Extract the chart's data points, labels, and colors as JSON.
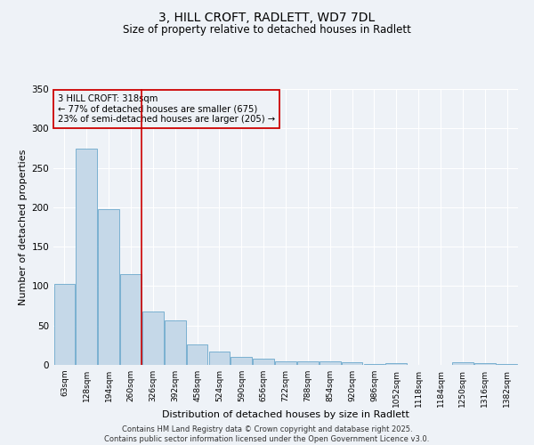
{
  "title_line1": "3, HILL CROFT, RADLETT, WD7 7DL",
  "title_line2": "Size of property relative to detached houses in Radlett",
  "xlabel": "Distribution of detached houses by size in Radlett",
  "ylabel": "Number of detached properties",
  "categories": [
    "63sqm",
    "128sqm",
    "194sqm",
    "260sqm",
    "326sqm",
    "392sqm",
    "458sqm",
    "524sqm",
    "590sqm",
    "656sqm",
    "722sqm",
    "788sqm",
    "854sqm",
    "920sqm",
    "986sqm",
    "1052sqm",
    "1118sqm",
    "1184sqm",
    "1250sqm",
    "1316sqm",
    "1382sqm"
  ],
  "values": [
    103,
    274,
    198,
    115,
    68,
    56,
    26,
    17,
    10,
    8,
    4,
    5,
    5,
    3,
    1,
    2,
    0,
    0,
    3,
    2,
    1
  ],
  "bar_color": "#c5d8e8",
  "bar_edge_color": "#6aa8cc",
  "vline_color": "#cc0000",
  "vline_pos": 3.5,
  "annotation_text": "3 HILL CROFT: 318sqm\n← 77% of detached houses are smaller (675)\n23% of semi-detached houses are larger (205) →",
  "annotation_box_edge_color": "#cc0000",
  "ylim": [
    0,
    350
  ],
  "yticks": [
    0,
    50,
    100,
    150,
    200,
    250,
    300,
    350
  ],
  "background_color": "#eef2f7",
  "grid_color": "#ffffff",
  "footer_text": "Contains HM Land Registry data © Crown copyright and database right 2025.\nContains public sector information licensed under the Open Government Licence v3.0."
}
